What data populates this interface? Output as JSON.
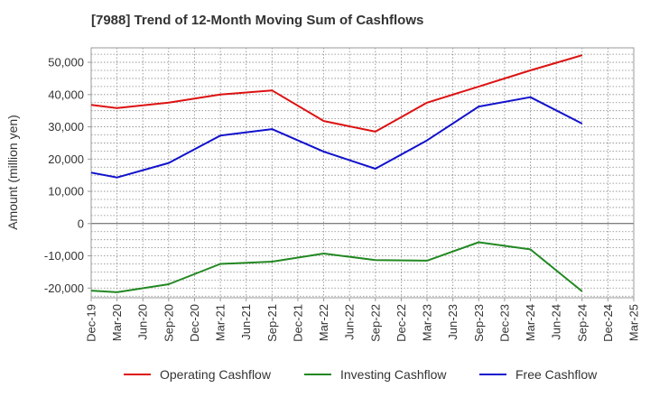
{
  "chart_data": {
    "type": "line",
    "title": "[7988]  Trend of 12-Month Moving Sum of Cashflows",
    "xlabel": "",
    "ylabel": "Amount (million yen)",
    "ylim": [
      -23000,
      54500
    ],
    "yticks": [
      50000,
      40000,
      30000,
      20000,
      10000,
      0,
      -10000,
      -20000
    ],
    "ytick_labels": [
      "50,000",
      "40,000",
      "30,000",
      "20,000",
      "10,000",
      "0",
      "-10,000",
      "-20,000"
    ],
    "categories": [
      "Dec-19",
      "Mar-20",
      "Jun-20",
      "Sep-20",
      "Dec-20",
      "Mar-21",
      "Jun-21",
      "Sep-21",
      "Dec-21",
      "Mar-22",
      "Jun-22",
      "Sep-22",
      "Dec-22",
      "Mar-23",
      "Jun-23",
      "Sep-23",
      "Dec-23",
      "Mar-24",
      "Jun-24",
      "Sep-24",
      "Dec-24",
      "Mar-25"
    ],
    "grid": true,
    "legend_position": "bottom",
    "series": [
      {
        "name": "Operating Cashflow",
        "color": "#dd1111",
        "points": [
          [
            "Dec-19",
            36800
          ],
          [
            "Mar-20",
            35800
          ],
          [
            "Sep-20",
            37500
          ],
          [
            "Mar-21",
            40000
          ],
          [
            "Sep-21",
            41300
          ],
          [
            "Mar-22",
            31800
          ],
          [
            "Sep-22",
            28500
          ],
          [
            "Mar-23",
            37500
          ],
          [
            "Sep-23",
            42500
          ],
          [
            "Mar-24",
            47500
          ],
          [
            "Sep-24",
            52200
          ]
        ]
      },
      {
        "name": "Investing Cashflow",
        "color": "#228822",
        "points": [
          [
            "Dec-19",
            -20800
          ],
          [
            "Mar-20",
            -21300
          ],
          [
            "Sep-20",
            -18800
          ],
          [
            "Mar-21",
            -12500
          ],
          [
            "Sep-21",
            -11800
          ],
          [
            "Mar-22",
            -9300
          ],
          [
            "Sep-22",
            -11300
          ],
          [
            "Mar-23",
            -11500
          ],
          [
            "Sep-23",
            -5800
          ],
          [
            "Mar-24",
            -8000
          ],
          [
            "Sep-24",
            -21000
          ]
        ]
      },
      {
        "name": "Free Cashflow",
        "color": "#1111cc",
        "points": [
          [
            "Dec-19",
            15800
          ],
          [
            "Mar-20",
            14300
          ],
          [
            "Sep-20",
            18800
          ],
          [
            "Mar-21",
            27300
          ],
          [
            "Sep-21",
            29300
          ],
          [
            "Mar-22",
            22300
          ],
          [
            "Sep-22",
            17000
          ],
          [
            "Mar-23",
            25800
          ],
          [
            "Sep-23",
            36300
          ],
          [
            "Mar-24",
            39200
          ],
          [
            "Sep-24",
            31000
          ]
        ]
      }
    ]
  }
}
